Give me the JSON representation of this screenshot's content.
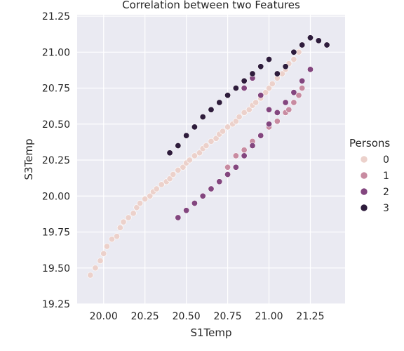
{
  "chart_data": {
    "type": "scatter",
    "title": "Correlation between two Features",
    "xlabel": "S1Temp",
    "ylabel": "S3Temp",
    "xlim": [
      19.84,
      21.46
    ],
    "ylim": [
      19.25,
      21.26
    ],
    "xticks": [
      "20.00",
      "20.25",
      "20.50",
      "20.75",
      "21.00",
      "21.25"
    ],
    "yticks": [
      "19.25",
      "19.50",
      "19.75",
      "20.00",
      "20.25",
      "20.50",
      "20.75",
      "21.00",
      "21.25"
    ],
    "grid": true,
    "legend": {
      "title": "Persons",
      "placement": "right",
      "entries": [
        "0",
        "1",
        "2",
        "3"
      ]
    },
    "colors": {
      "0": "#ecd1cb",
      "1": "#c88ba1",
      "2": "#83467f",
      "3": "#2e1c3c",
      "background": "#eaeaf2"
    },
    "series": [
      {
        "name": "0",
        "x": [
          19.92,
          19.95,
          19.98,
          20.0,
          20.02,
          20.05,
          20.08,
          20.1,
          20.12,
          20.15,
          20.18,
          20.2,
          20.22,
          20.25,
          20.28,
          20.3,
          20.32,
          20.35,
          20.38,
          20.4,
          20.42,
          20.45,
          20.48,
          20.5,
          20.52,
          20.55,
          20.58,
          20.6,
          20.62,
          20.65,
          20.68,
          20.7,
          20.72,
          20.75,
          20.78,
          20.8,
          20.82,
          20.85,
          20.88,
          20.9,
          20.92,
          20.95,
          20.98,
          21.0,
          21.02,
          21.05,
          21.08,
          21.1,
          21.12,
          21.15,
          21.18
        ],
        "y": [
          19.45,
          19.5,
          19.55,
          19.6,
          19.65,
          19.7,
          19.72,
          19.78,
          19.82,
          19.85,
          19.88,
          19.92,
          19.95,
          19.98,
          20.0,
          20.03,
          20.05,
          20.08,
          20.1,
          20.12,
          20.15,
          20.18,
          20.2,
          20.23,
          20.25,
          20.28,
          20.3,
          20.33,
          20.35,
          20.38,
          20.4,
          20.43,
          20.45,
          20.48,
          20.5,
          20.52,
          20.55,
          20.58,
          20.6,
          20.63,
          20.65,
          20.68,
          20.72,
          20.75,
          20.78,
          20.82,
          20.85,
          20.88,
          20.92,
          20.95,
          21.0
        ]
      },
      {
        "name": "1",
        "x": [
          20.75,
          20.8,
          20.85,
          20.9,
          20.95,
          21.0,
          21.05,
          21.1,
          21.12,
          21.15,
          21.18,
          21.2
        ],
        "y": [
          20.2,
          20.28,
          20.32,
          20.38,
          20.42,
          20.48,
          20.52,
          20.58,
          20.6,
          20.65,
          20.7,
          20.75
        ]
      },
      {
        "name": "2",
        "x": [
          20.45,
          20.5,
          20.55,
          20.6,
          20.65,
          20.7,
          20.75,
          20.8,
          20.85,
          20.9,
          20.95,
          21.0,
          21.05,
          21.1,
          21.15,
          21.2,
          21.25,
          20.85,
          20.9,
          20.95,
          21.0
        ],
        "y": [
          19.85,
          19.9,
          19.95,
          20.0,
          20.05,
          20.1,
          20.15,
          20.2,
          20.28,
          20.35,
          20.42,
          20.5,
          20.58,
          20.65,
          20.72,
          20.8,
          20.88,
          20.75,
          20.82,
          20.7,
          20.6
        ]
      },
      {
        "name": "3",
        "x": [
          20.4,
          20.45,
          20.5,
          20.55,
          20.6,
          20.65,
          20.7,
          20.75,
          20.8,
          20.85,
          20.9,
          20.95,
          21.0,
          21.05,
          21.1,
          21.15,
          21.2,
          21.25,
          21.3,
          21.35
        ],
        "y": [
          20.3,
          20.35,
          20.42,
          20.48,
          20.55,
          20.6,
          20.65,
          20.7,
          20.75,
          20.8,
          20.85,
          20.9,
          20.95,
          20.85,
          20.9,
          21.0,
          21.05,
          21.1,
          21.08,
          21.05
        ]
      }
    ]
  }
}
